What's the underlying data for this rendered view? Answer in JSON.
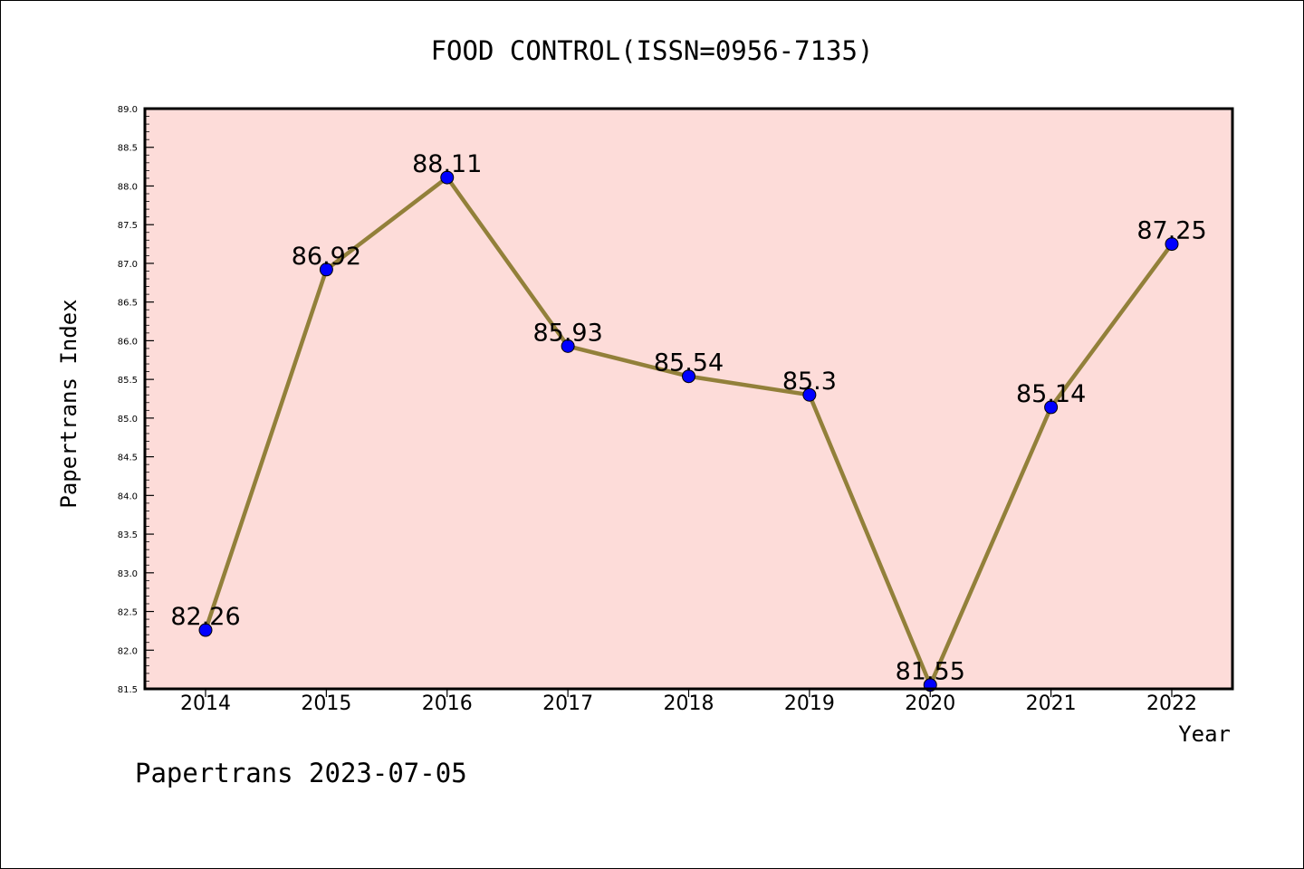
{
  "chart_data": {
    "type": "line",
    "title": "FOOD CONTROL(ISSN=0956-7135)",
    "xlabel": "Year",
    "ylabel": "Papertrans Index",
    "categories": [
      "2014",
      "2015",
      "2016",
      "2017",
      "2018",
      "2019",
      "2020",
      "2021",
      "2022"
    ],
    "series": [
      {
        "values": [
          82.26,
          86.92,
          88.11,
          85.93,
          85.54,
          85.3,
          81.55,
          85.14,
          87.25
        ]
      }
    ],
    "data_labels": [
      "82.26",
      "86.92",
      "88.11",
      "85.93",
      "85.54",
      "85.3",
      "81.55",
      "85.14",
      "87.25"
    ],
    "ylim": [
      81.5,
      89.0
    ],
    "y_ticks": [
      "81.5",
      "82.0",
      "82.5",
      "83.0",
      "83.5",
      "84.0",
      "84.5",
      "85.0",
      "85.5",
      "86.0",
      "86.5",
      "87.0",
      "87.5",
      "88.0",
      "88.5",
      "89.0"
    ],
    "grid": false,
    "legend": "none",
    "colors": {
      "plot_background": "#fddcd9",
      "line": "#92803a",
      "marker": "#0000ff"
    }
  },
  "footer": {
    "text": "Papertrans 2023-07-05"
  }
}
